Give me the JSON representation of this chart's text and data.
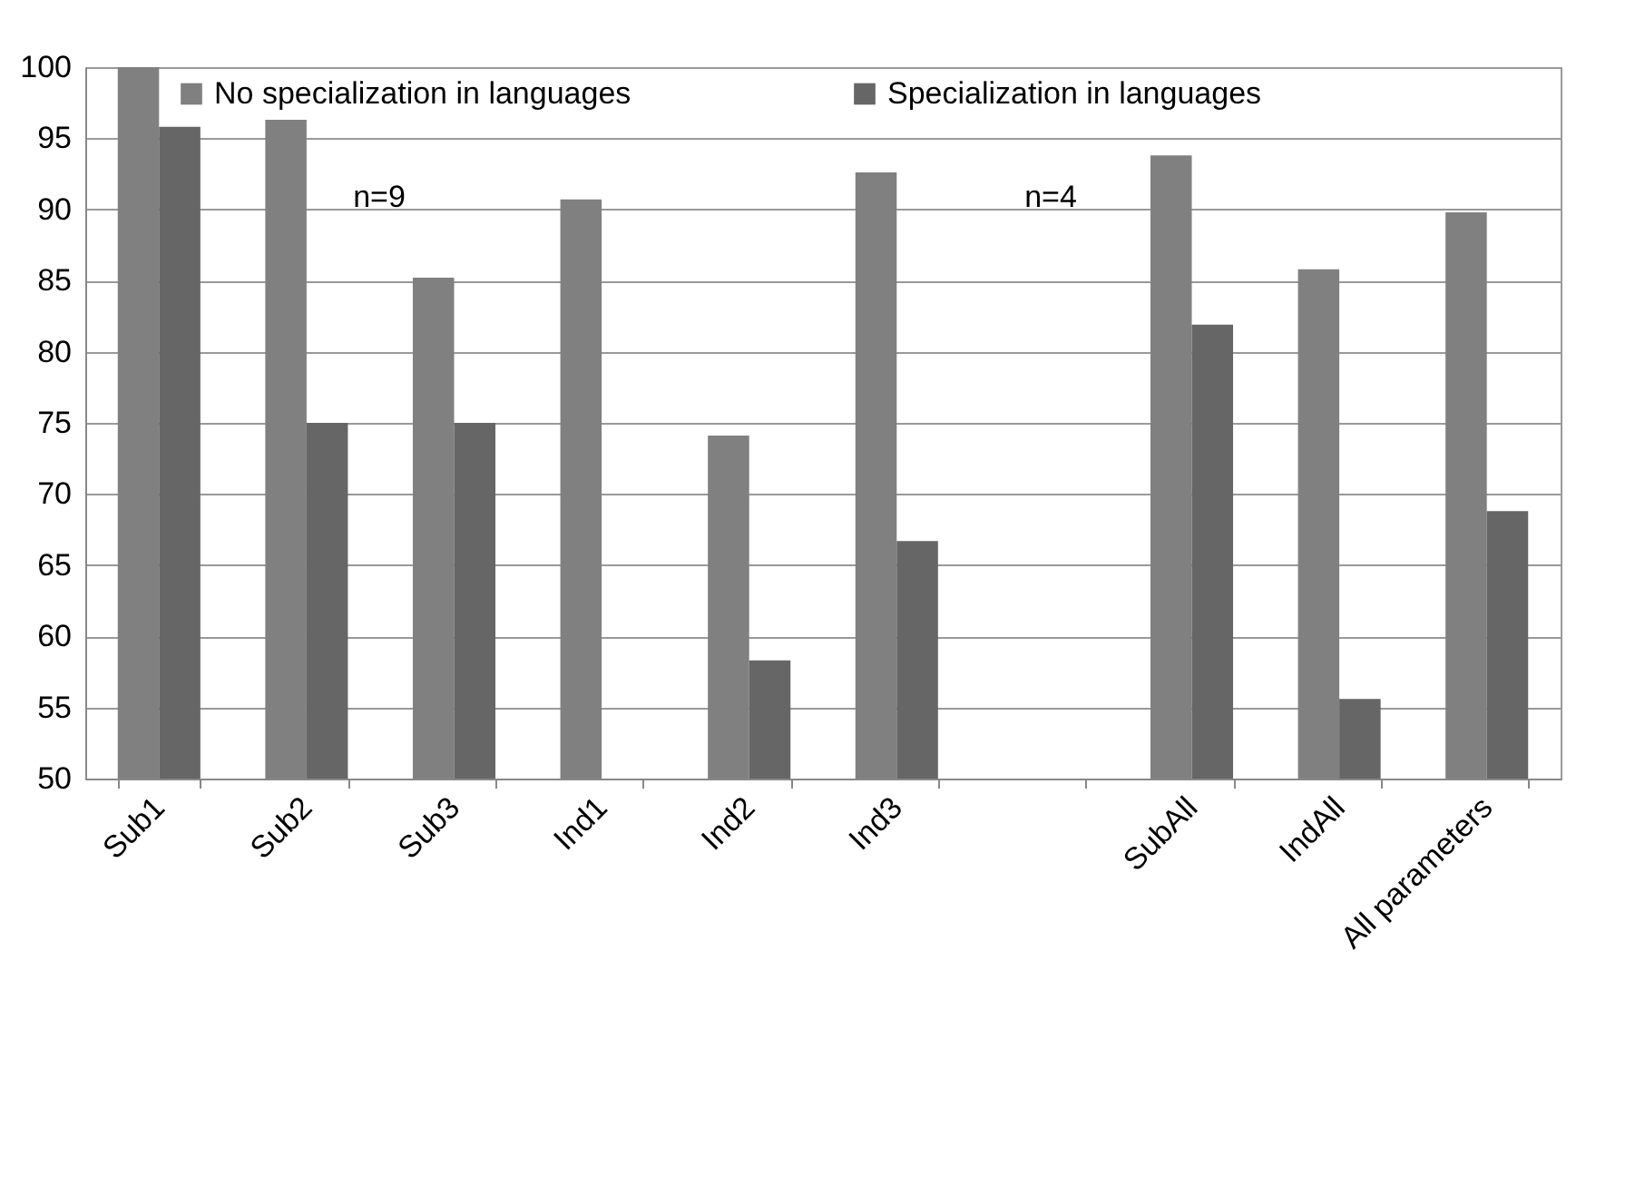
{
  "chart_data": {
    "type": "bar",
    "categories": [
      "Sub1",
      "Sub2",
      "Sub3",
      "Ind1",
      "Ind2",
      "Ind3",
      null,
      "SubAll",
      "IndAll",
      "All parameters"
    ],
    "series": [
      {
        "name": "No specialization in languages",
        "color": "#808080",
        "values": [
          100,
          96.3,
          85.2,
          90.7,
          74.1,
          92.6,
          null,
          93.8,
          85.8,
          89.8
        ]
      },
      {
        "name": "Specialization in languages",
        "color": "#666666",
        "values": [
          95.8,
          75,
          75,
          50,
          58.3,
          66.7,
          null,
          81.9,
          55.6,
          68.8
        ]
      }
    ],
    "ylim": [
      50,
      100
    ],
    "yticks": [
      50,
      55,
      60,
      65,
      70,
      75,
      80,
      85,
      90,
      95,
      100
    ],
    "grid": "y",
    "legend": "top",
    "annotations": [
      "n=9",
      "n=4"
    ]
  }
}
